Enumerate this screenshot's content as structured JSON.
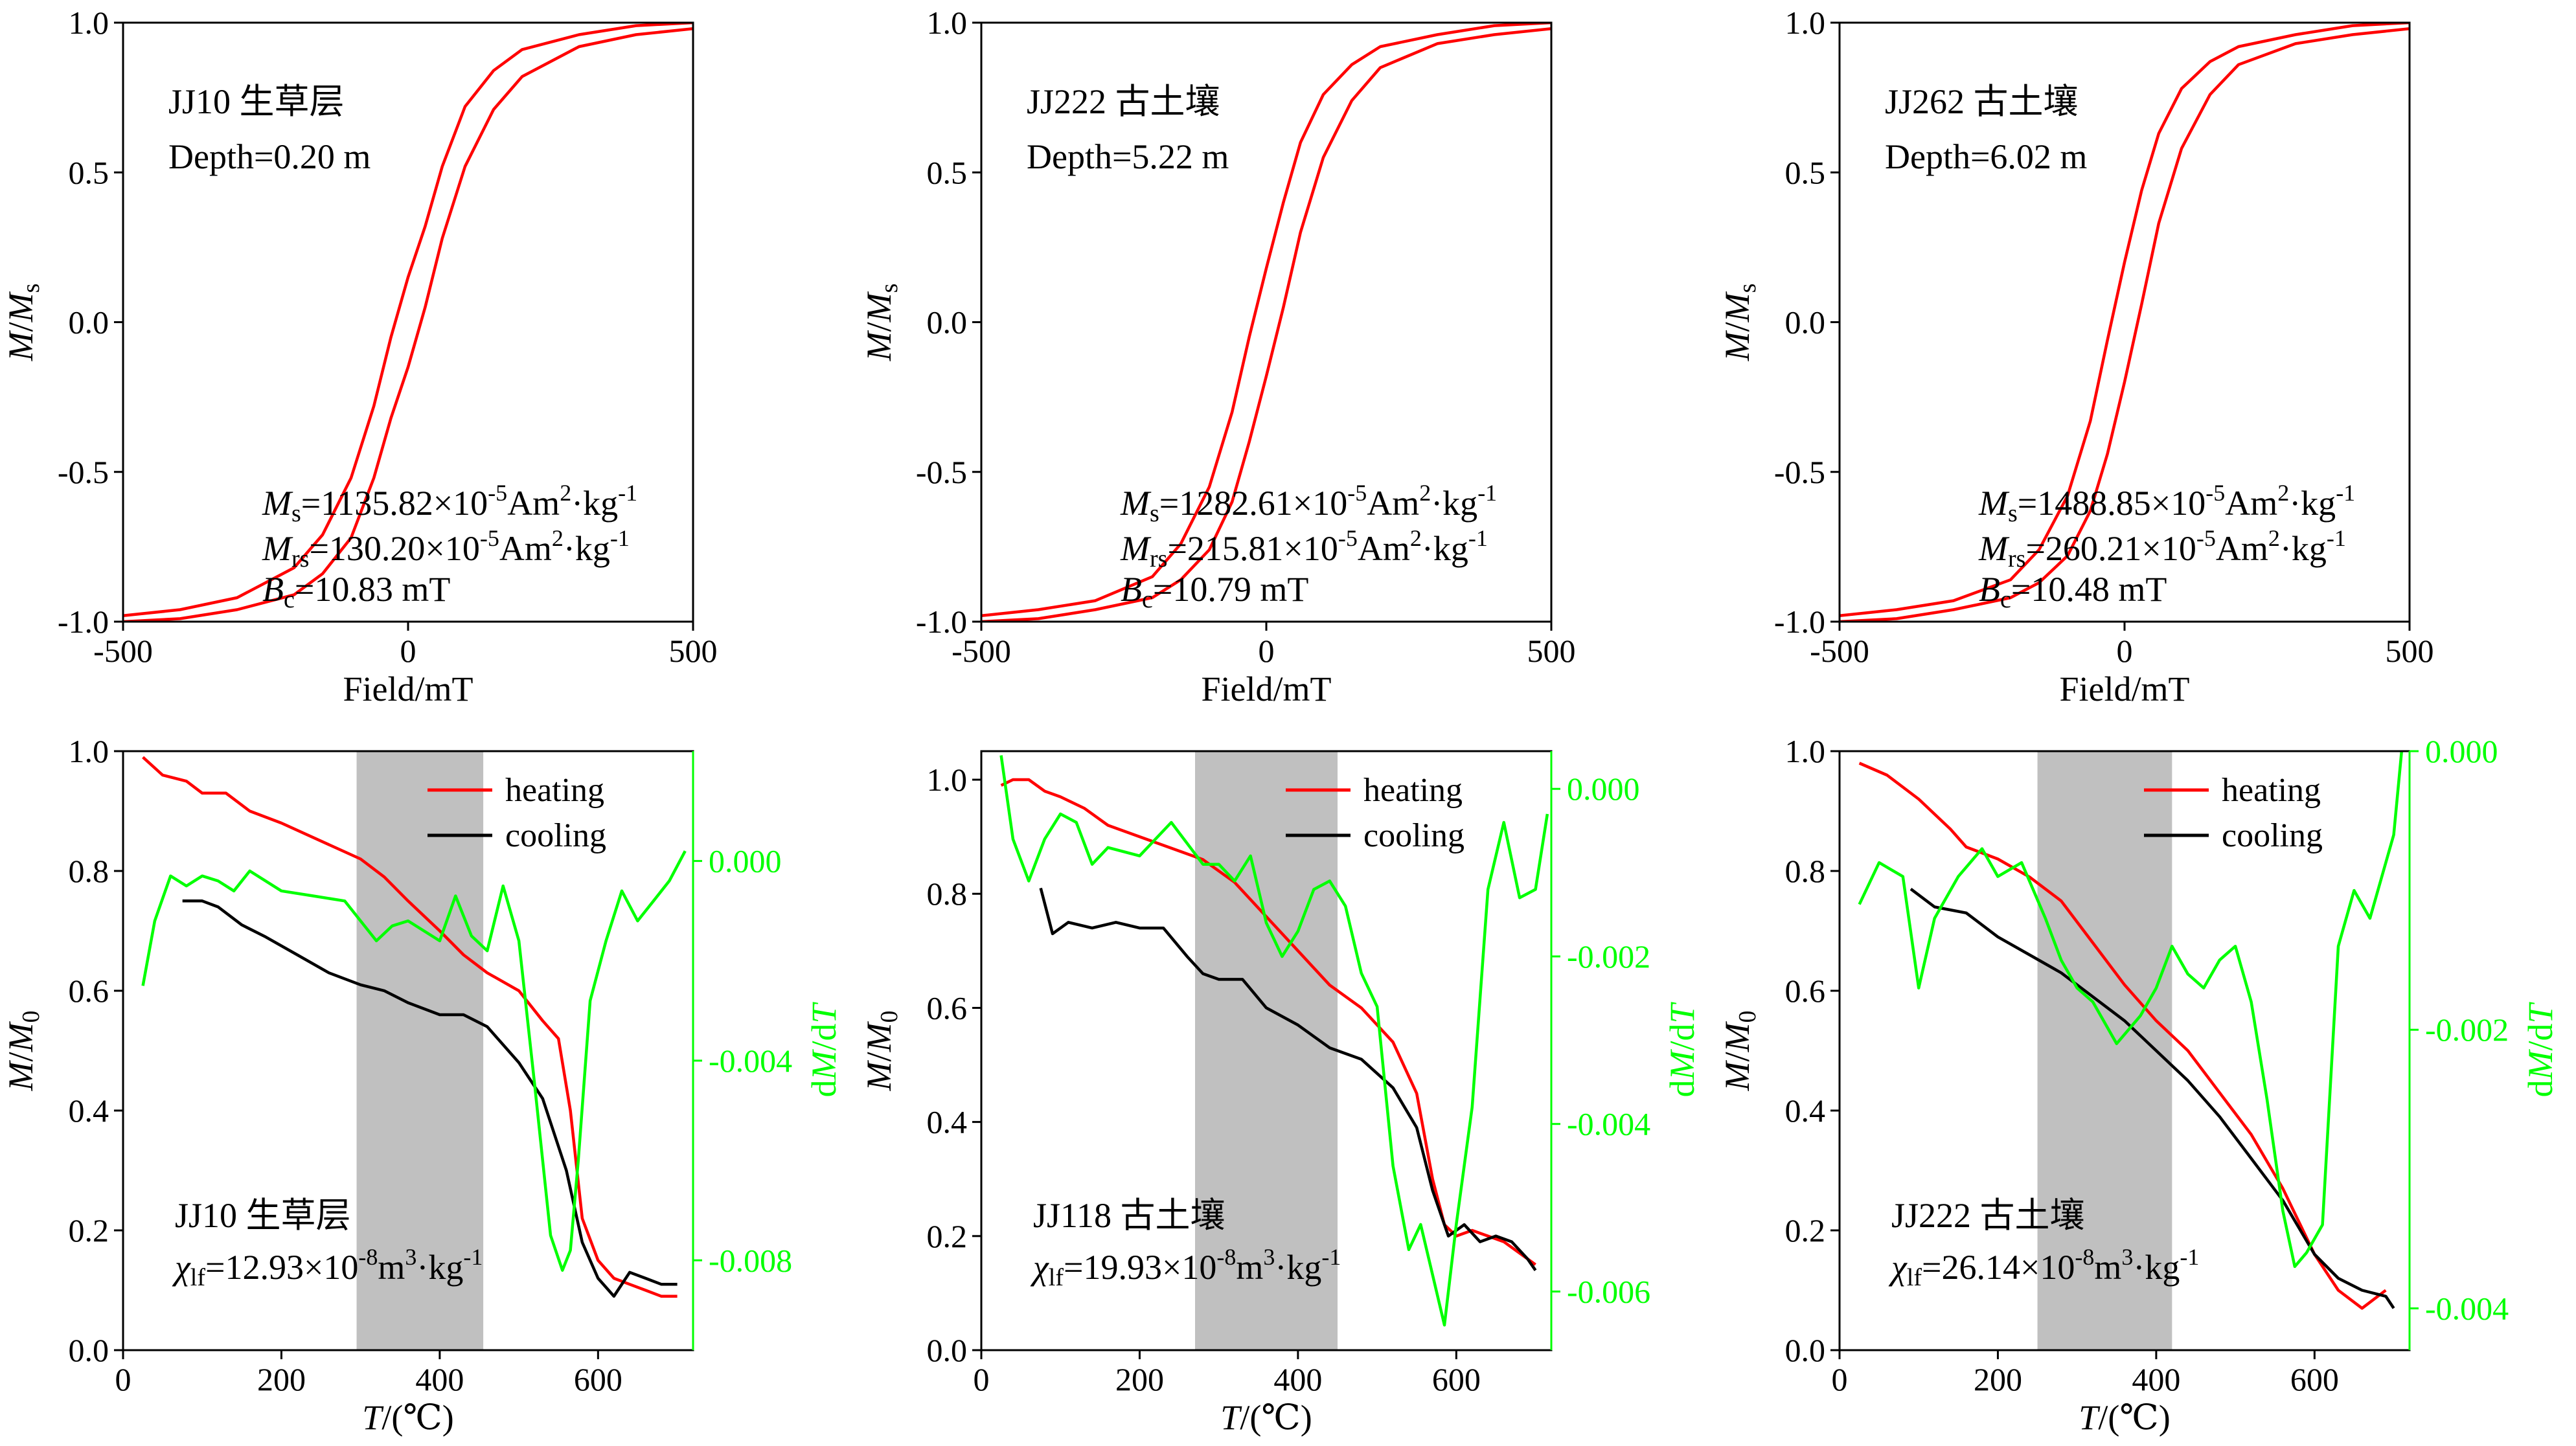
{
  "colors": {
    "heating": "#ff0000",
    "cooling": "#000000",
    "derivative": "#00ff00",
    "loop": "#ff0000",
    "shade": "#c0c0c0"
  },
  "chart_data": [
    {
      "type": "line",
      "panel": "hysteresis",
      "xlabel": "Field/mT",
      "ylabel": "M/Ms",
      "xlim": [
        -500,
        500
      ],
      "ylim": [
        -1.0,
        1.0
      ],
      "xticks": [
        "-500",
        "0",
        "500"
      ],
      "yticks": [
        "-1.0",
        "-0.5",
        "0.0",
        "0.5",
        "1.0"
      ],
      "annotations": {
        "sample": "JJ10 生草层",
        "depth": "Depth=0.20 m",
        "ms": "=1135.82×10",
        "mrs": "=130.20×10",
        "bc": "=10.83 mT"
      },
      "series": [
        {
          "branch": "upper",
          "x": [
            -500,
            -400,
            -300,
            -200,
            -150,
            -100,
            -60,
            -30,
            0,
            30,
            60,
            100,
            150,
            200,
            300,
            400,
            500
          ],
          "y": [
            -0.98,
            -0.96,
            -0.92,
            -0.82,
            -0.71,
            -0.52,
            -0.28,
            -0.05,
            0.15,
            0.32,
            0.52,
            0.72,
            0.84,
            0.91,
            0.96,
            0.99,
            1.0
          ]
        },
        {
          "branch": "lower",
          "x": [
            -500,
            -400,
            -300,
            -200,
            -150,
            -100,
            -60,
            -30,
            0,
            30,
            60,
            100,
            150,
            200,
            300,
            400,
            500
          ],
          "y": [
            -1.0,
            -0.99,
            -0.96,
            -0.91,
            -0.84,
            -0.72,
            -0.52,
            -0.32,
            -0.15,
            0.05,
            0.28,
            0.52,
            0.71,
            0.82,
            0.92,
            0.96,
            0.98
          ]
        }
      ]
    },
    {
      "type": "line",
      "panel": "hysteresis",
      "xlabel": "Field/mT",
      "ylabel": "M/Ms",
      "xlim": [
        -500,
        500
      ],
      "ylim": [
        -1.0,
        1.0
      ],
      "xticks": [
        "-500",
        "0",
        "500"
      ],
      "yticks": [
        "-1.0",
        "-0.5",
        "0.0",
        "0.5",
        "1.0"
      ],
      "annotations": {
        "sample": "JJ222 古土壤",
        "depth": "Depth=5.22 m",
        "ms": "=1282.61×10",
        "mrs": "=215.81×10",
        "bc": "=10.79 mT"
      },
      "series": [
        {
          "branch": "upper",
          "x": [
            -500,
            -400,
            -300,
            -200,
            -150,
            -100,
            -60,
            -30,
            0,
            30,
            60,
            100,
            150,
            200,
            300,
            400,
            500
          ],
          "y": [
            -0.98,
            -0.96,
            -0.93,
            -0.85,
            -0.74,
            -0.55,
            -0.3,
            -0.05,
            0.18,
            0.4,
            0.6,
            0.76,
            0.86,
            0.92,
            0.96,
            0.99,
            1.0
          ]
        },
        {
          "branch": "lower",
          "x": [
            -500,
            -400,
            -300,
            -200,
            -150,
            -100,
            -60,
            -30,
            0,
            30,
            60,
            100,
            150,
            200,
            300,
            400,
            500
          ],
          "y": [
            -1.0,
            -0.99,
            -0.96,
            -0.92,
            -0.86,
            -0.76,
            -0.6,
            -0.4,
            -0.18,
            0.05,
            0.3,
            0.55,
            0.74,
            0.85,
            0.93,
            0.96,
            0.98
          ]
        }
      ]
    },
    {
      "type": "line",
      "panel": "hysteresis",
      "xlabel": "Field/mT",
      "ylabel": "M/Ms",
      "xlim": [
        -500,
        500
      ],
      "ylim": [
        -1.0,
        1.0
      ],
      "xticks": [
        "-500",
        "0",
        "500"
      ],
      "yticks": [
        "-1.0",
        "-0.5",
        "0.0",
        "0.5",
        "1.0"
      ],
      "annotations": {
        "sample": "JJ262 古土壤",
        "depth": "Depth=6.02 m",
        "ms": "=1488.85×10",
        "mrs": "=260.21×10",
        "bc": "=10.48 mT"
      },
      "series": [
        {
          "branch": "upper",
          "x": [
            -500,
            -400,
            -300,
            -200,
            -150,
            -100,
            -60,
            -30,
            0,
            30,
            60,
            100,
            150,
            200,
            300,
            400,
            500
          ],
          "y": [
            -0.98,
            -0.96,
            -0.93,
            -0.86,
            -0.76,
            -0.58,
            -0.33,
            -0.06,
            0.2,
            0.44,
            0.63,
            0.78,
            0.87,
            0.92,
            0.96,
            0.99,
            1.0
          ]
        },
        {
          "branch": "lower",
          "x": [
            -500,
            -400,
            -300,
            -200,
            -150,
            -100,
            -60,
            -30,
            0,
            30,
            60,
            100,
            150,
            200,
            300,
            400,
            500
          ],
          "y": [
            -1.0,
            -0.99,
            -0.96,
            -0.92,
            -0.87,
            -0.78,
            -0.63,
            -0.44,
            -0.2,
            0.06,
            0.33,
            0.58,
            0.76,
            0.86,
            0.93,
            0.96,
            0.98
          ]
        }
      ]
    },
    {
      "type": "line",
      "panel": "thermomagnetic",
      "xlabel": "T/(℃)",
      "ylabel": "M/M0",
      "y2label": "dM/dT",
      "xlim": [
        0,
        720
      ],
      "ylim": [
        0,
        1.0
      ],
      "y2lim": [
        -0.0098,
        0.0022
      ],
      "xticks": [
        "0",
        "200",
        "400",
        "600"
      ],
      "yticks": [
        "0.0",
        "0.2",
        "0.4",
        "0.6",
        "0.8",
        "1.0"
      ],
      "y2ticks": [
        {
          "value": 0.0,
          "label": "0.000"
        },
        {
          "value": -0.004,
          "label": "-0.004"
        },
        {
          "value": -0.008,
          "label": "-0.008"
        }
      ],
      "shaded_range": [
        295,
        455
      ],
      "legend": {
        "heating": "heating",
        "cooling": "cooling"
      },
      "annotations": {
        "sample": "JJ10 生草层",
        "chi": "=12.93×10"
      },
      "series": [
        {
          "name": "heating",
          "x": [
            25,
            50,
            80,
            100,
            130,
            160,
            200,
            250,
            300,
            330,
            360,
            400,
            430,
            460,
            500,
            530,
            550,
            565,
            580,
            600,
            620,
            640,
            660,
            680,
            700
          ],
          "y": [
            0.99,
            0.96,
            0.95,
            0.93,
            0.93,
            0.9,
            0.88,
            0.85,
            0.82,
            0.79,
            0.75,
            0.7,
            0.66,
            0.63,
            0.6,
            0.55,
            0.52,
            0.4,
            0.22,
            0.15,
            0.12,
            0.11,
            0.1,
            0.09,
            0.09
          ]
        },
        {
          "name": "cooling",
          "x": [
            75,
            100,
            120,
            150,
            180,
            220,
            260,
            300,
            330,
            360,
            400,
            430,
            460,
            500,
            530,
            560,
            580,
            600,
            620,
            640,
            660,
            680,
            700
          ],
          "y": [
            0.75,
            0.75,
            0.74,
            0.71,
            0.69,
            0.66,
            0.63,
            0.61,
            0.6,
            0.58,
            0.56,
            0.56,
            0.54,
            0.48,
            0.42,
            0.3,
            0.18,
            0.12,
            0.09,
            0.13,
            0.12,
            0.11,
            0.11
          ]
        },
        {
          "name": "dM/dT",
          "x": [
            25,
            40,
            60,
            80,
            100,
            120,
            140,
            160,
            200,
            240,
            280,
            300,
            320,
            340,
            360,
            400,
            420,
            440,
            460,
            480,
            500,
            520,
            540,
            555,
            565,
            575,
            590,
            610,
            630,
            650,
            670,
            690,
            710
          ],
          "y": [
            -0.0025,
            -0.0012,
            -0.0003,
            -0.0005,
            -0.0003,
            -0.0004,
            -0.0006,
            -0.0002,
            -0.0006,
            -0.0007,
            -0.0008,
            -0.0012,
            -0.0016,
            -0.0013,
            -0.0012,
            -0.0016,
            -0.0007,
            -0.0015,
            -0.0018,
            -0.0005,
            -0.0016,
            -0.0045,
            -0.0075,
            -0.0082,
            -0.0078,
            -0.006,
            -0.0028,
            -0.0016,
            -0.0006,
            -0.0012,
            -0.0008,
            -0.0004,
            0.0002
          ]
        }
      ]
    },
    {
      "type": "line",
      "panel": "thermomagnetic",
      "xlabel": "T/(℃)",
      "ylabel": "M/M0",
      "y2label": "dM/dT",
      "xlim": [
        0,
        720
      ],
      "ylim": [
        0,
        1.05
      ],
      "y2lim": [
        -0.0067,
        0.00045
      ],
      "xticks": [
        "0",
        "200",
        "400",
        "600"
      ],
      "yticks": [
        "0.0",
        "0.2",
        "0.4",
        "0.6",
        "0.8",
        "1.0"
      ],
      "y2ticks": [
        {
          "value": 0.0,
          "label": "0.000"
        },
        {
          "value": -0.002,
          "label": "-0.002"
        },
        {
          "value": -0.004,
          "label": "-0.004"
        },
        {
          "value": -0.006,
          "label": "-0.006"
        }
      ],
      "shaded_range": [
        270,
        450
      ],
      "legend": {
        "heating": "heating",
        "cooling": "cooling"
      },
      "annotations": {
        "sample": "JJ118 古土壤",
        "chi": "=19.93×10"
      },
      "series": [
        {
          "name": "heating",
          "x": [
            25,
            40,
            60,
            80,
            100,
            130,
            160,
            200,
            240,
            280,
            320,
            360,
            400,
            440,
            480,
            520,
            550,
            570,
            585,
            600,
            620,
            640,
            660,
            680,
            700
          ],
          "y": [
            0.99,
            1.0,
            1.0,
            0.98,
            0.97,
            0.95,
            0.92,
            0.9,
            0.88,
            0.86,
            0.82,
            0.76,
            0.7,
            0.64,
            0.6,
            0.54,
            0.45,
            0.3,
            0.22,
            0.2,
            0.21,
            0.2,
            0.19,
            0.17,
            0.15
          ]
        },
        {
          "name": "cooling",
          "x": [
            75,
            90,
            110,
            140,
            170,
            200,
            230,
            260,
            280,
            300,
            330,
            360,
            400,
            440,
            480,
            520,
            550,
            570,
            590,
            610,
            630,
            650,
            670,
            690,
            700
          ],
          "y": [
            0.81,
            0.73,
            0.75,
            0.74,
            0.75,
            0.74,
            0.74,
            0.69,
            0.66,
            0.65,
            0.65,
            0.6,
            0.57,
            0.53,
            0.51,
            0.46,
            0.39,
            0.28,
            0.2,
            0.22,
            0.19,
            0.2,
            0.19,
            0.16,
            0.14
          ]
        },
        {
          "name": "dM/dT",
          "x": [
            25,
            40,
            60,
            80,
            100,
            120,
            140,
            160,
            200,
            240,
            280,
            300,
            320,
            340,
            360,
            380,
            400,
            420,
            440,
            460,
            480,
            500,
            520,
            540,
            555,
            570,
            585,
            600,
            620,
            640,
            660,
            680,
            700,
            715
          ],
          "y": [
            0.0004,
            -0.0006,
            -0.0011,
            -0.0006,
            -0.0003,
            -0.0004,
            -0.0009,
            -0.0007,
            -0.0008,
            -0.0004,
            -0.0009,
            -0.0009,
            -0.0011,
            -0.0008,
            -0.0016,
            -0.002,
            -0.0017,
            -0.0012,
            -0.0011,
            -0.0014,
            -0.0022,
            -0.0026,
            -0.0045,
            -0.0055,
            -0.0052,
            -0.0058,
            -0.0064,
            -0.0052,
            -0.0038,
            -0.0012,
            -0.0004,
            -0.0013,
            -0.0012,
            -0.0003
          ]
        }
      ]
    },
    {
      "type": "line",
      "panel": "thermomagnetic",
      "xlabel": "T/(℃)",
      "ylabel": "M/M0",
      "y2label": "dM/dT",
      "xlim": [
        0,
        720
      ],
      "ylim": [
        0,
        1.0
      ],
      "y2lim": [
        -0.0043,
        0.0
      ],
      "xticks": [
        "0",
        "200",
        "400",
        "600"
      ],
      "yticks": [
        "0.0",
        "0.2",
        "0.4",
        "0.6",
        "0.8",
        "1.0"
      ],
      "y2ticks": [
        {
          "value": 0.0,
          "label": "0.000"
        },
        {
          "value": -0.002,
          "label": "-0.002"
        },
        {
          "value": -0.004,
          "label": "-0.004"
        }
      ],
      "shaded_range": [
        250,
        420
      ],
      "legend": {
        "heating": "heating",
        "cooling": "cooling"
      },
      "annotations": {
        "sample": "JJ222 古土壤",
        "chi": "=26.14×10"
      },
      "series": [
        {
          "name": "heating",
          "x": [
            25,
            60,
            100,
            140,
            160,
            200,
            240,
            280,
            320,
            360,
            400,
            440,
            480,
            520,
            560,
            600,
            630,
            660,
            690
          ],
          "y": [
            0.98,
            0.96,
            0.92,
            0.87,
            0.84,
            0.82,
            0.79,
            0.75,
            0.68,
            0.61,
            0.55,
            0.5,
            0.43,
            0.36,
            0.27,
            0.16,
            0.1,
            0.07,
            0.1
          ]
        },
        {
          "name": "cooling",
          "x": [
            90,
            120,
            160,
            200,
            240,
            280,
            320,
            360,
            400,
            440,
            480,
            520,
            560,
            600,
            630,
            660,
            690,
            700
          ],
          "y": [
            0.77,
            0.74,
            0.73,
            0.69,
            0.66,
            0.63,
            0.59,
            0.55,
            0.5,
            0.45,
            0.39,
            0.32,
            0.25,
            0.16,
            0.12,
            0.1,
            0.09,
            0.07
          ]
        },
        {
          "name": "dM/dT",
          "x": [
            25,
            50,
            80,
            100,
            120,
            150,
            180,
            200,
            230,
            260,
            280,
            300,
            320,
            350,
            380,
            400,
            420,
            440,
            460,
            480,
            500,
            520,
            540,
            560,
            575,
            590,
            610,
            630,
            650,
            670,
            700,
            710
          ],
          "y": [
            -0.0011,
            -0.0008,
            -0.0009,
            -0.0017,
            -0.0012,
            -0.0009,
            -0.0007,
            -0.0009,
            -0.0008,
            -0.0012,
            -0.0015,
            -0.0017,
            -0.0018,
            -0.0021,
            -0.0019,
            -0.0017,
            -0.0014,
            -0.0016,
            -0.0017,
            -0.0015,
            -0.0014,
            -0.0018,
            -0.0025,
            -0.0033,
            -0.0037,
            -0.0036,
            -0.0034,
            -0.0014,
            -0.001,
            -0.0012,
            -0.0006,
            0.0
          ]
        }
      ]
    }
  ]
}
